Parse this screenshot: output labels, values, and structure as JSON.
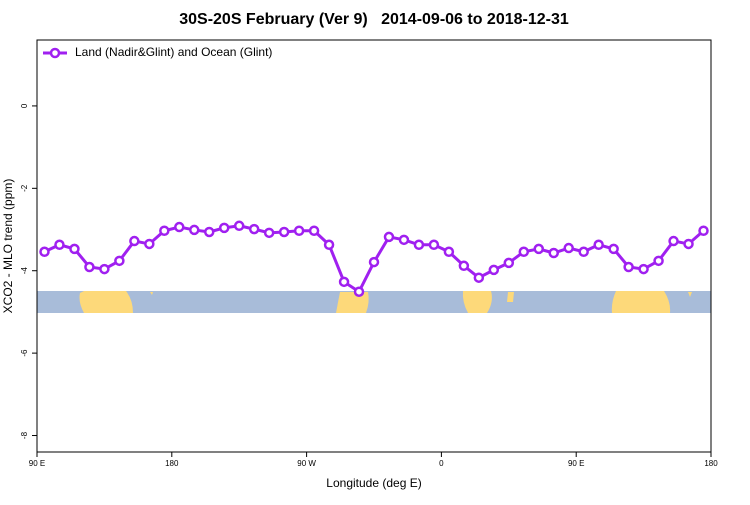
{
  "chart_data": {
    "type": "line",
    "title": "30S-20S February (Ver 9)   2014-09-06 to 2018-12-31",
    "xlabel": "Longitude (deg E)",
    "ylabel": "XCO2 - MLO trend (ppm)",
    "x": [
      95,
      105,
      115,
      125,
      135,
      145,
      155,
      165,
      175,
      185,
      195,
      205,
      215,
      225,
      235,
      245,
      255,
      265,
      275,
      285,
      295,
      305,
      315,
      325,
      335,
      345,
      355,
      365,
      375,
      385,
      395,
      405,
      415,
      425,
      435,
      445,
      455,
      465,
      475,
      485,
      495,
      505,
      515,
      525,
      535
    ],
    "series": [
      {
        "name": "Land (Nadir&Glint) and Ocean (Glint)",
        "color": "#a020f0",
        "values": [
          -3.54,
          -3.37,
          -3.47,
          -3.91,
          -3.96,
          -3.76,
          -3.28,
          -3.35,
          -3.03,
          -2.94,
          -3.01,
          -3.06,
          -2.96,
          -2.91,
          -2.99,
          -3.08,
          -3.06,
          -3.03,
          -3.03,
          -3.37,
          -4.27,
          -4.51,
          -3.79,
          -3.18,
          -3.25,
          -3.37,
          -3.37,
          -3.54,
          -3.88,
          -4.17,
          -3.98,
          -3.81,
          -3.54,
          -3.47,
          -3.57,
          -3.45,
          -3.54,
          -3.37,
          -3.47,
          -3.91,
          -3.96,
          -3.76,
          -3.28,
          -3.35,
          -3.03
        ]
      }
    ],
    "xlim": [
      90,
      540
    ],
    "xticks": [
      {
        "value": 90,
        "label": "90 E"
      },
      {
        "value": 180,
        "label": "180"
      },
      {
        "value": 270,
        "label": "90 W"
      },
      {
        "value": 360,
        "label": "0"
      },
      {
        "value": 450,
        "label": "90 E"
      },
      {
        "value": 540,
        "label": "180"
      }
    ],
    "ylim": [
      -8.4,
      1.6
    ],
    "yticks": [
      0,
      -2,
      -4,
      -6,
      -8
    ],
    "legend": "top-left"
  }
}
